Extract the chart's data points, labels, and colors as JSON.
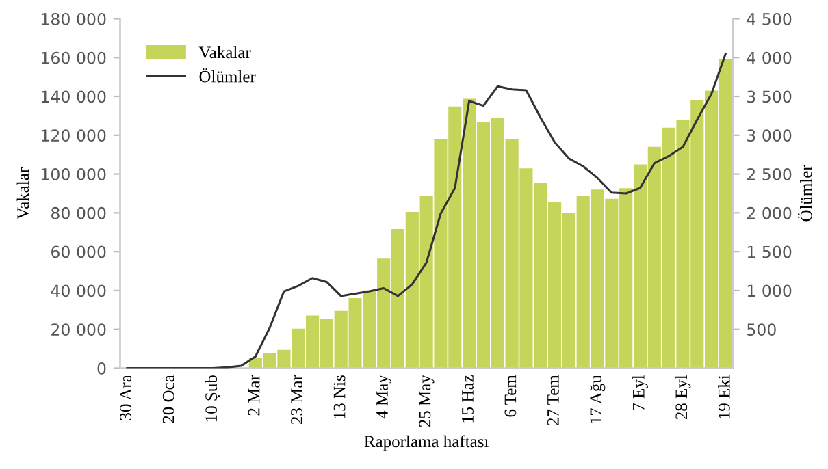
{
  "chart_data": {
    "type": "bar",
    "xlabel": "Raporlama haftası",
    "ylabel": "Vakalar",
    "y2label": "Ölümler",
    "categories": [
      "30 Ara",
      null,
      null,
      "20 Oca",
      null,
      null,
      "10 Şub",
      null,
      null,
      "2 Mar",
      null,
      null,
      "23 Mar",
      null,
      null,
      "13 Nis",
      null,
      null,
      "4 May",
      null,
      null,
      "25 May",
      null,
      null,
      "15 Haz",
      null,
      null,
      "6 Tem",
      null,
      null,
      "27 Tem",
      null,
      null,
      "17 Ağu",
      null,
      null,
      "7 Eyl",
      null,
      null,
      "28 Eyl",
      null,
      null,
      "19 Eki"
    ],
    "series": [
      {
        "name": "Vakalar",
        "color": "#c5d55a",
        "values": [
          0,
          0,
          0,
          0,
          0,
          0,
          0,
          0,
          0,
          5200,
          7800,
          9400,
          20300,
          27100,
          25300,
          29500,
          36100,
          40100,
          56400,
          71700,
          80500,
          88700,
          118000,
          134800,
          138800,
          126700,
          128900,
          117800,
          102900,
          95300,
          85400,
          79800,
          88700,
          92000,
          87300,
          92700,
          105000,
          114000,
          123900,
          128000,
          138000,
          143000,
          159000
        ]
      },
      {
        "name": "Ölümler",
        "type": "line",
        "axis": "y2",
        "color": "#333333",
        "values": [
          0,
          0,
          0,
          0,
          0,
          0,
          0,
          10,
          30,
          150,
          520,
          990,
          1060,
          1160,
          1110,
          930,
          960,
          990,
          1030,
          930,
          1080,
          1360,
          1990,
          2320,
          3440,
          3380,
          3630,
          3590,
          3580,
          3230,
          2910,
          2700,
          2600,
          2450,
          2260,
          2250,
          2320,
          2640,
          2730,
          2850,
          3200,
          3530,
          4050
        ]
      }
    ],
    "ylim": [
      0,
      180000
    ],
    "yticks": [
      0,
      {
        "value": 20000,
        "label": "20 000"
      },
      {
        "value": 40000,
        "label": "40 000"
      },
      {
        "value": 60000,
        "label": "60 000"
      },
      {
        "value": 80000,
        "label": "80 000"
      },
      {
        "value": 100000,
        "label": "100 000"
      },
      {
        "value": 120000,
        "label": "120 000"
      },
      {
        "value": 140000,
        "label": "140 000"
      },
      {
        "value": 160000,
        "label": "160 000"
      },
      {
        "value": 180000,
        "label": "180 000"
      }
    ],
    "y2lim": [
      0,
      4500
    ],
    "y2ticks": [
      500,
      {
        "value": 1000,
        "label": "1 000"
      },
      {
        "value": 1500,
        "label": "1 500"
      },
      {
        "value": 2000,
        "label": "2 000"
      },
      {
        "value": 2500,
        "label": "2 500"
      },
      {
        "value": 3000,
        "label": "3 000"
      },
      {
        "value": 3500,
        "label": "3 500"
      },
      {
        "value": 4000,
        "label": "4 000"
      },
      {
        "value": 4500,
        "label": "4 500"
      }
    ],
    "grid": false,
    "legend": "top left",
    "marker": "none",
    "line_style": "solid"
  }
}
